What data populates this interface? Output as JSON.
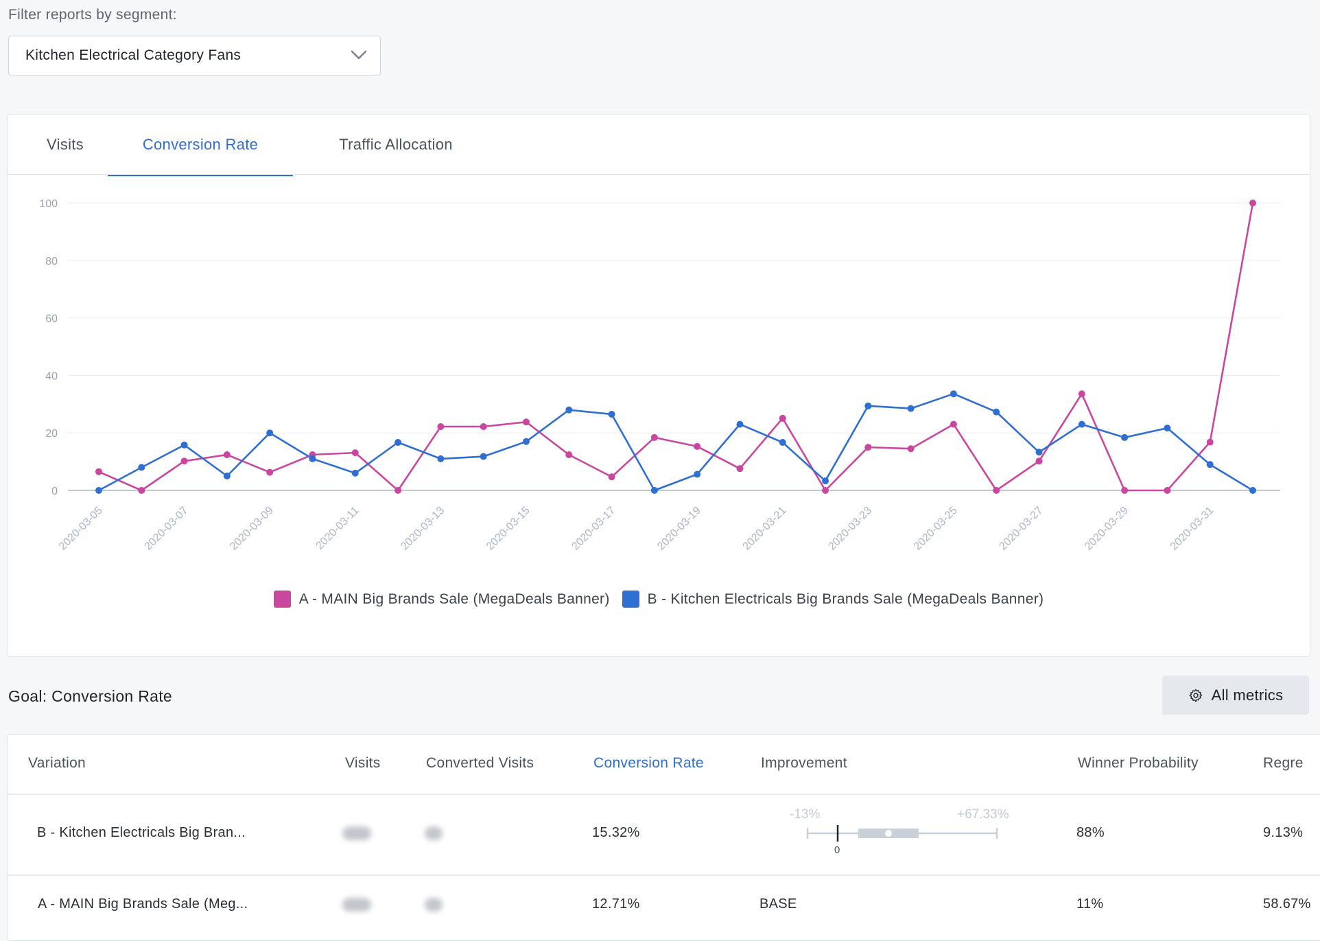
{
  "filter": {
    "label": "Filter reports by segment:",
    "selected": "Kitchen Electrical Category Fans"
  },
  "tabs": [
    {
      "label": "Visits",
      "active": false
    },
    {
      "label": "Conversion Rate",
      "active": true
    },
    {
      "label": "Traffic Allocation",
      "active": false
    }
  ],
  "chart_data": {
    "type": "line",
    "ylim": [
      0,
      100
    ],
    "yticks": [
      "0",
      "20",
      "40",
      "60",
      "80",
      "100"
    ],
    "x": [
      "2020-03-05",
      "2020-03-06",
      "2020-03-07",
      "2020-03-08",
      "2020-03-09",
      "2020-03-10",
      "2020-03-11",
      "2020-03-12",
      "2020-03-13",
      "2020-03-14",
      "2020-03-15",
      "2020-03-16",
      "2020-03-17",
      "2020-03-18",
      "2020-03-19",
      "2020-03-20",
      "2020-03-21",
      "2020-03-22",
      "2020-03-23",
      "2020-03-24",
      "2020-03-25",
      "2020-03-26",
      "2020-03-27",
      "2020-03-28",
      "2020-03-29",
      "2020-03-30",
      "2020-03-31",
      "2020-04-01"
    ],
    "xtick_labels": [
      "2020-03-05",
      "2020-03-07",
      "2020-03-09",
      "2020-03-11",
      "2020-03-13",
      "2020-03-15",
      "2020-03-17",
      "2020-03-19",
      "2020-03-21",
      "2020-03-23",
      "2020-03-25",
      "2020-03-27",
      "2020-03-29",
      "2020-03-31"
    ],
    "series": [
      {
        "name": "A - MAIN Big Brands Sale (MegaDeals Banner)",
        "color": "#c9479f",
        "values": [
          6.5,
          0,
          10.2,
          12.4,
          6.3,
          12.4,
          13.1,
          0,
          22.2,
          22.2,
          23.8,
          12.4,
          4.7,
          18.4,
          15.3,
          7.6,
          25.1,
          0,
          15.0,
          14.5,
          23.0,
          0,
          10.2,
          33.6,
          0,
          0,
          16.8,
          100
        ]
      },
      {
        "name": "B - Kitchen Electricals Big Brands Sale (MegaDeals Banner)",
        "color": "#2f6fd1",
        "values": [
          0,
          8.0,
          15.8,
          5.0,
          20.0,
          11.0,
          6.0,
          16.7,
          11.0,
          11.8,
          17.0,
          28.0,
          26.5,
          0,
          5.6,
          23.0,
          16.7,
          3.3,
          29.4,
          28.5,
          33.6,
          27.3,
          13.3,
          23.0,
          18.4,
          21.7,
          9.0,
          0
        ]
      }
    ]
  },
  "goal": {
    "title": "Goal: Conversion Rate",
    "button_label": "All metrics",
    "button_icon": "gear-icon"
  },
  "table": {
    "headers": [
      "Variation",
      "Visits",
      "Converted Visits",
      "Conversion Rate",
      "Improvement",
      "Winner Probability",
      "Regre"
    ],
    "active_header": "Conversion Rate",
    "rows": [
      {
        "variation": "B - Kitchen Electricals Big Bran...",
        "conversion_rate": "15.32%",
        "improvement": {
          "low": "-13%",
          "high": "+67.33%",
          "zero": "0"
        },
        "winner_probability": "88%",
        "regret": "9.13%"
      },
      {
        "variation": "A - MAIN Big Brands Sale (Meg...",
        "conversion_rate": "12.71%",
        "improvement_text": "BASE",
        "winner_probability": "11%",
        "regret": "58.67%"
      }
    ]
  },
  "colors": {
    "accent": "#2f6fd1",
    "series_a": "#c9479f",
    "series_b": "#2f6fd1"
  }
}
